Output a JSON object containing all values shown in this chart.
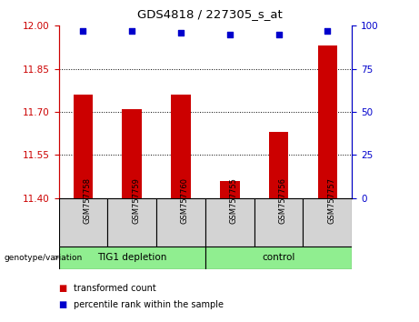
{
  "title": "GDS4818 / 227305_s_at",
  "samples": [
    "GSM757758",
    "GSM757759",
    "GSM757760",
    "GSM757755",
    "GSM757756",
    "GSM757757"
  ],
  "bar_values": [
    11.76,
    11.71,
    11.76,
    11.46,
    11.63,
    11.93
  ],
  "percentile_values": [
    97,
    97,
    96,
    95,
    95,
    97
  ],
  "bar_color": "#cc0000",
  "dot_color": "#0000cc",
  "ylim_left": [
    11.4,
    12.0
  ],
  "ylim_right": [
    0,
    100
  ],
  "yticks_left": [
    11.4,
    11.55,
    11.7,
    11.85,
    12.0
  ],
  "yticks_right": [
    0,
    25,
    50,
    75,
    100
  ],
  "group1_label": "TIG1 depletion",
  "group2_label": "control",
  "genotype_label": "genotype/variation",
  "legend_bar_label": "transformed count",
  "legend_dot_label": "percentile rank within the sample",
  "tick_color_left": "#cc0000",
  "tick_color_right": "#0000cc",
  "grid_yticks": [
    11.55,
    11.7,
    11.85
  ],
  "bar_width": 0.4
}
